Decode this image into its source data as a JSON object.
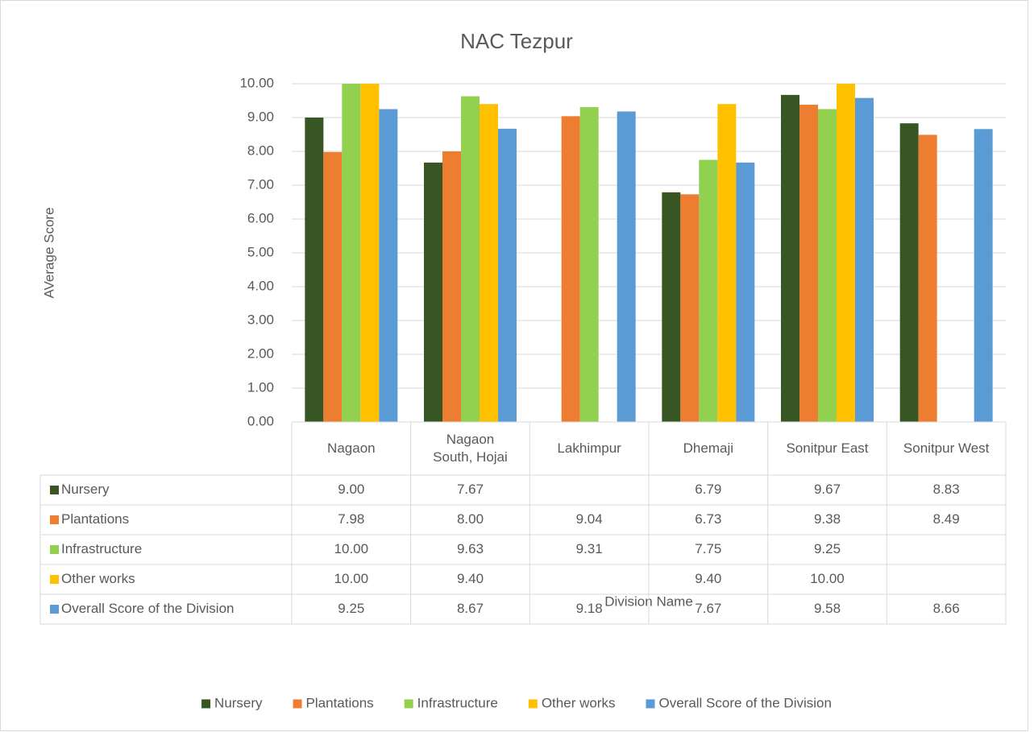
{
  "chart_data": {
    "type": "bar",
    "title": "NAC Tezpur",
    "x_label": "Division Name",
    "y_label": "AVerage Score",
    "categories": [
      "Nagaon",
      "Nagaon South, Hojai",
      "Lakhimpur",
      "Dhemaji",
      "Sonitpur East",
      "Sonitpur West"
    ],
    "series": [
      {
        "name": "Nursery",
        "color": "#375623",
        "values": [
          9.0,
          7.67,
          null,
          6.79,
          9.67,
          8.83
        ],
        "value_labels": [
          "9.00",
          "7.67",
          null,
          "6.79",
          "9.67",
          "8.83"
        ]
      },
      {
        "name": "Plantations",
        "color": "#ed7d31",
        "values": [
          7.98,
          8.0,
          9.04,
          6.73,
          9.38,
          8.49
        ],
        "value_labels": [
          "7.98",
          "8.00",
          "9.04",
          "6.73",
          "9.38",
          "8.49"
        ]
      },
      {
        "name": "Infrastructure",
        "color": "#92d050",
        "values": [
          10.0,
          9.63,
          9.31,
          7.75,
          9.25,
          null
        ],
        "value_labels": [
          "10.00",
          "9.63",
          "9.31",
          "7.75",
          "9.25",
          null
        ]
      },
      {
        "name": "Other works",
        "color": "#ffc000",
        "values": [
          10.0,
          9.4,
          null,
          9.4,
          10.0,
          null
        ],
        "value_labels": [
          "10.00",
          "9.40",
          null,
          "9.40",
          "10.00",
          null
        ]
      },
      {
        "name": "Overall Score of the Division",
        "color": "#5b9bd5",
        "values": [
          9.25,
          8.67,
          9.18,
          7.67,
          9.58,
          8.66
        ],
        "value_labels": [
          "9.25",
          "8.67",
          "9.18",
          "7.67",
          "9.58",
          "8.66"
        ]
      }
    ],
    "ylim": [
      0,
      10
    ],
    "yticks": [
      {
        "value": 0,
        "label": "0.00"
      },
      {
        "value": 1,
        "label": "1.00"
      },
      {
        "value": 2,
        "label": "2.00"
      },
      {
        "value": 3,
        "label": "3.00"
      },
      {
        "value": 4,
        "label": "4.00"
      },
      {
        "value": 5,
        "label": "5.00"
      },
      {
        "value": 6,
        "label": "6.00"
      },
      {
        "value": 7,
        "label": "7.00"
      },
      {
        "value": 8,
        "label": "8.00"
      },
      {
        "value": 9,
        "label": "9.00"
      },
      {
        "value": 10,
        "label": "10.00"
      }
    ],
    "grid": true,
    "legend": "bottom"
  }
}
